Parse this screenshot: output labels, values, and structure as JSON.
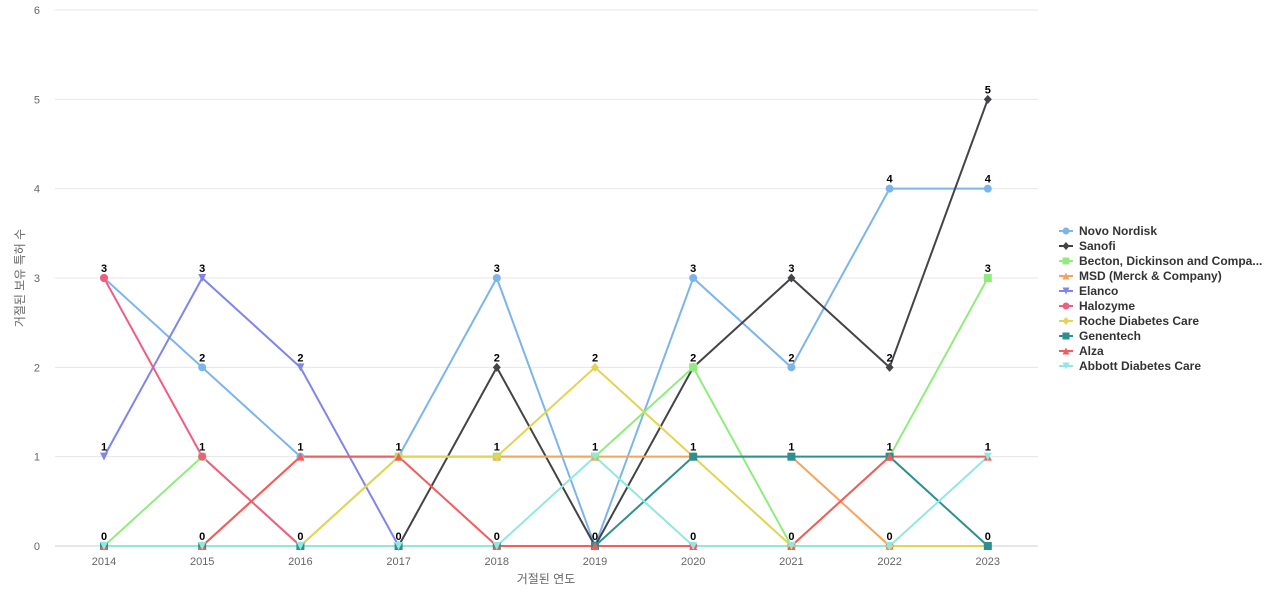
{
  "chart_data": {
    "type": "line",
    "title": "",
    "xlabel": "거절된 연도",
    "ylabel": "거절된 보유 특허 수",
    "categories": [
      "2014",
      "2015",
      "2016",
      "2017",
      "2018",
      "2019",
      "2020",
      "2021",
      "2022",
      "2023"
    ],
    "ylim": [
      0,
      6
    ],
    "yticks": [
      "0",
      "1",
      "2",
      "3",
      "4",
      "5",
      "6"
    ],
    "grid": true,
    "legend_position": "right",
    "data_label_values": [
      "3",
      "3",
      "2",
      "1",
      "3",
      "2",
      "3",
      "3",
      "4",
      "5",
      "1",
      "1",
      "1",
      "1",
      "1",
      "1",
      "1",
      "1",
      "1",
      "1",
      "0",
      "0",
      "0",
      "0",
      "0",
      "0",
      "0",
      "0",
      "0",
      "0",
      "2",
      "2",
      "2",
      "2",
      "4",
      "3"
    ],
    "series": [
      {
        "name": "Novo Nordisk",
        "color": "#7cb5ec",
        "marker": "circle",
        "values": [
          3,
          2,
          1,
          1,
          3,
          0,
          3,
          2,
          4,
          4
        ]
      },
      {
        "name": "Sanofi",
        "color": "#434348",
        "marker": "diamond",
        "values": [
          0,
          0,
          0,
          0,
          2,
          0,
          2,
          3,
          2,
          5
        ]
      },
      {
        "name": "Becton, Dickinson and Compa...",
        "color": "#90ed7d",
        "marker": "square",
        "values": [
          0,
          1,
          0,
          1,
          1,
          1,
          2,
          0,
          1,
          3
        ]
      },
      {
        "name": "MSD (Merck & Company)",
        "color": "#f7a35c",
        "marker": "triangle",
        "values": [
          0,
          0,
          1,
          1,
          1,
          1,
          1,
          1,
          0,
          0
        ]
      },
      {
        "name": "Elanco",
        "color": "#8085e9",
        "marker": "triangle-down",
        "values": [
          1,
          3,
          2,
          0,
          0,
          0,
          0,
          0,
          0,
          0
        ]
      },
      {
        "name": "Halozyme",
        "color": "#f15c80",
        "marker": "circle",
        "values": [
          3,
          1,
          0,
          0,
          0,
          0,
          0,
          0,
          0,
          0
        ]
      },
      {
        "name": "Roche Diabetes Care",
        "color": "#e4d354",
        "marker": "diamond",
        "values": [
          0,
          0,
          0,
          1,
          1,
          2,
          1,
          0,
          0,
          0
        ]
      },
      {
        "name": "Genentech",
        "color": "#2b908f",
        "marker": "square",
        "values": [
          0,
          0,
          0,
          0,
          0,
          0,
          1,
          1,
          1,
          0
        ]
      },
      {
        "name": "Alza",
        "color": "#f45b5b",
        "marker": "triangle",
        "values": [
          0,
          0,
          1,
          1,
          0,
          0,
          0,
          0,
          1,
          1
        ]
      },
      {
        "name": "Abbott Diabetes Care",
        "color": "#91e8e1",
        "marker": "triangle-down",
        "values": [
          0,
          0,
          0,
          0,
          0,
          1,
          0,
          0,
          0,
          1
        ]
      }
    ]
  }
}
